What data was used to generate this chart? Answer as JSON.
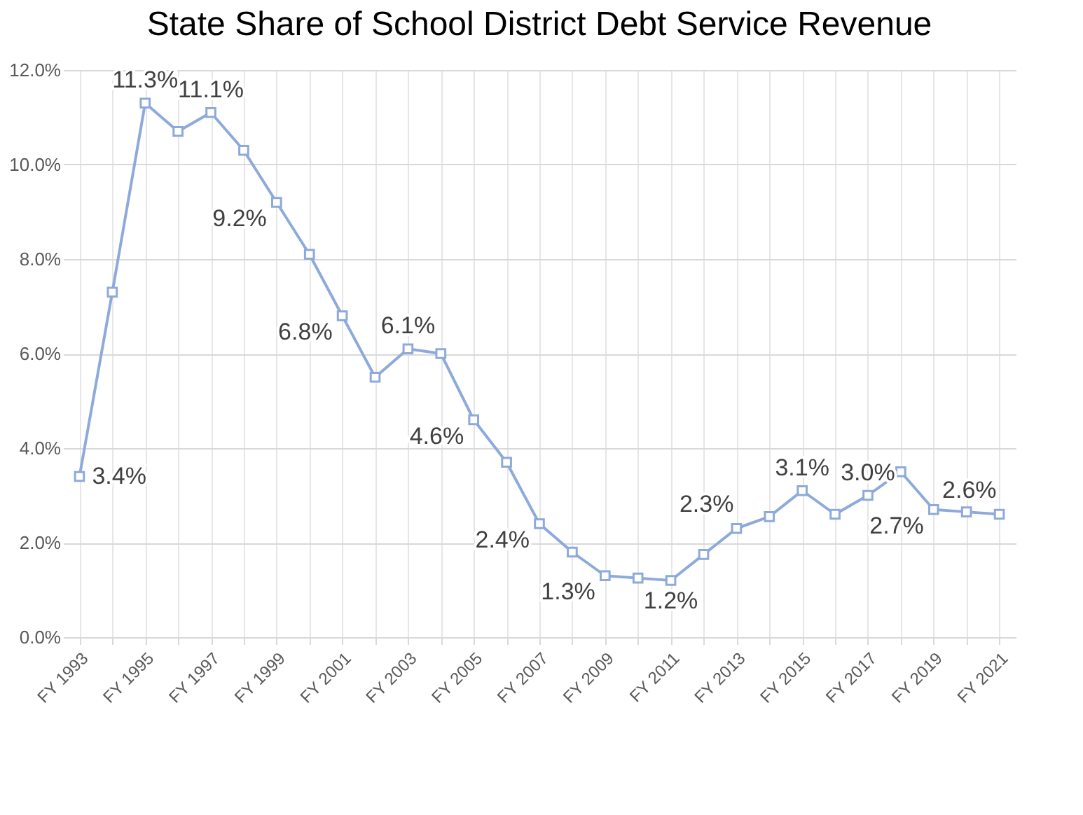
{
  "chart_data": {
    "type": "line",
    "title": "State Share of School District Debt Service Revenue",
    "categories": [
      "FY 1993",
      null,
      "FY 1995",
      null,
      "FY 1997",
      null,
      "FY 1999",
      null,
      "FY 2001",
      null,
      "FY 2003",
      null,
      "FY 2005",
      null,
      "FY 2007",
      null,
      "FY 2009",
      null,
      "FY 2011",
      null,
      "FY 2013",
      null,
      "FY 2015",
      null,
      "FY 2017",
      null,
      "FY 2019",
      null,
      "FY 2021"
    ],
    "series": [
      {
        "color": "#8eaadb",
        "values": [
          3.4,
          7.3,
          11.3,
          10.7,
          11.1,
          10.3,
          9.2,
          8.1,
          6.8,
          5.5,
          6.1,
          6.0,
          4.6,
          3.7,
          2.4,
          1.8,
          1.3,
          1.25,
          1.2,
          1.75,
          2.3,
          2.55,
          3.1,
          2.6,
          3.0,
          3.5,
          2.7,
          2.65,
          2.6
        ],
        "value_labels": [
          "3.4%",
          null,
          "11.3%",
          null,
          "11.1%",
          null,
          "9.2%",
          null,
          "6.8%",
          null,
          "6.1%",
          null,
          "4.6%",
          null,
          "2.4%",
          null,
          "1.3%",
          null,
          "1.2%",
          null,
          "2.3%",
          null,
          "3.1%",
          null,
          "3.0%",
          null,
          "2.7%",
          null,
          "2.6%"
        ]
      }
    ],
    "ylim": [
      0,
      12
    ],
    "yticks": [
      {
        "value": 0,
        "label": "0.0%"
      },
      {
        "value": 2,
        "label": "2.0%"
      },
      {
        "value": 4,
        "label": "4.0%"
      },
      {
        "value": 6,
        "label": "6.0%"
      },
      {
        "value": 8,
        "label": "8.0%"
      },
      {
        "value": 10,
        "label": "10.0%"
      },
      {
        "value": 12,
        "label": "12.0%"
      }
    ],
    "grid": true,
    "marker": "square",
    "line_style": "solid"
  }
}
